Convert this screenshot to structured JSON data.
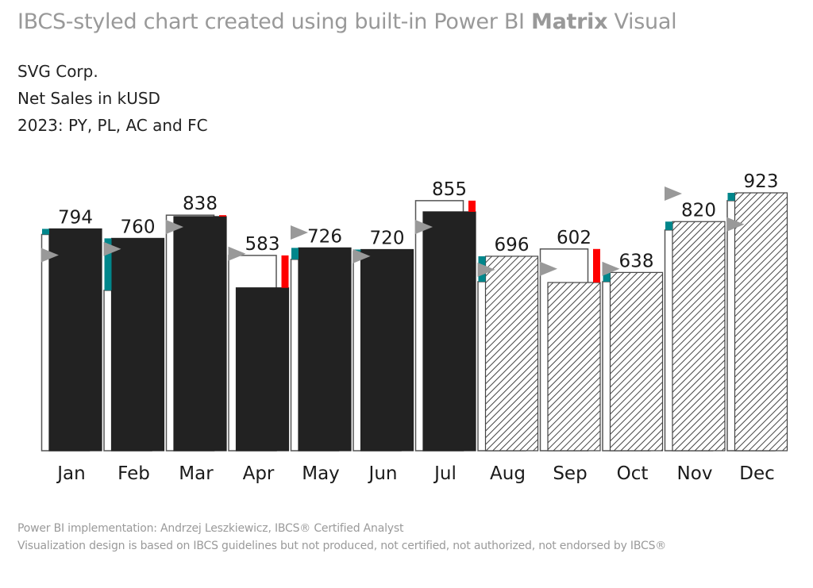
{
  "header": {
    "title_prefix": "IBCS-styled chart created using built-in Power BI ",
    "title_bold": "Matrix",
    "title_suffix": " Visual",
    "subtitle_lines": [
      "SVG Corp.",
      "Net Sales in kUSD",
      "2023: PY, PL, AC and FC"
    ]
  },
  "footer": {
    "line1": "Power BI implementation: Andrzej Leszkiewicz, IBCS® Certified Analyst",
    "line2": "Visualization design is based on IBCS guidelines but not produced, not certified, not authorized, not endorsed by IBCS®"
  },
  "colors": {
    "actual": "#222222",
    "forecast_hatch": "#444444",
    "positive_delta": "#00868B",
    "negative_delta": "#FF0000",
    "plan_marker": "#999999",
    "previous_year_fill": "#ffffff",
    "previous_year_stroke": "#555555"
  },
  "chart_data": {
    "type": "bar",
    "title": "Net Sales in kUSD",
    "categories": [
      "Jan",
      "Feb",
      "Mar",
      "Apr",
      "May",
      "Jun",
      "Jul",
      "Aug",
      "Sep",
      "Oct",
      "Nov",
      "Dec"
    ],
    "series": [
      {
        "name": "AC/FC",
        "values": [
          794,
          760,
          838,
          583,
          726,
          720,
          855,
          696,
          602,
          638,
          820,
          923
        ],
        "scenario": [
          "AC",
          "AC",
          "AC",
          "AC",
          "AC",
          "AC",
          "AC",
          "FC",
          "FC",
          "FC",
          "FC",
          "FC"
        ]
      },
      {
        "name": "PY",
        "values": [
          774,
          574,
          843,
          699,
          685,
          713,
          895,
          605,
          722,
          605,
          790,
          895
        ]
      },
      {
        "name": "PL",
        "values": [
          700,
          722,
          801,
          705,
          781,
          696,
          801,
          648,
          651,
          651,
          920,
          810
        ]
      }
    ],
    "data_labels": [
      "794",
      "760",
      "838",
      "583",
      "726",
      "720",
      "855",
      "696",
      "602",
      "638",
      "820",
      "923"
    ],
    "ylim": [
      0,
      923
    ],
    "grid": false,
    "legend": "none"
  }
}
